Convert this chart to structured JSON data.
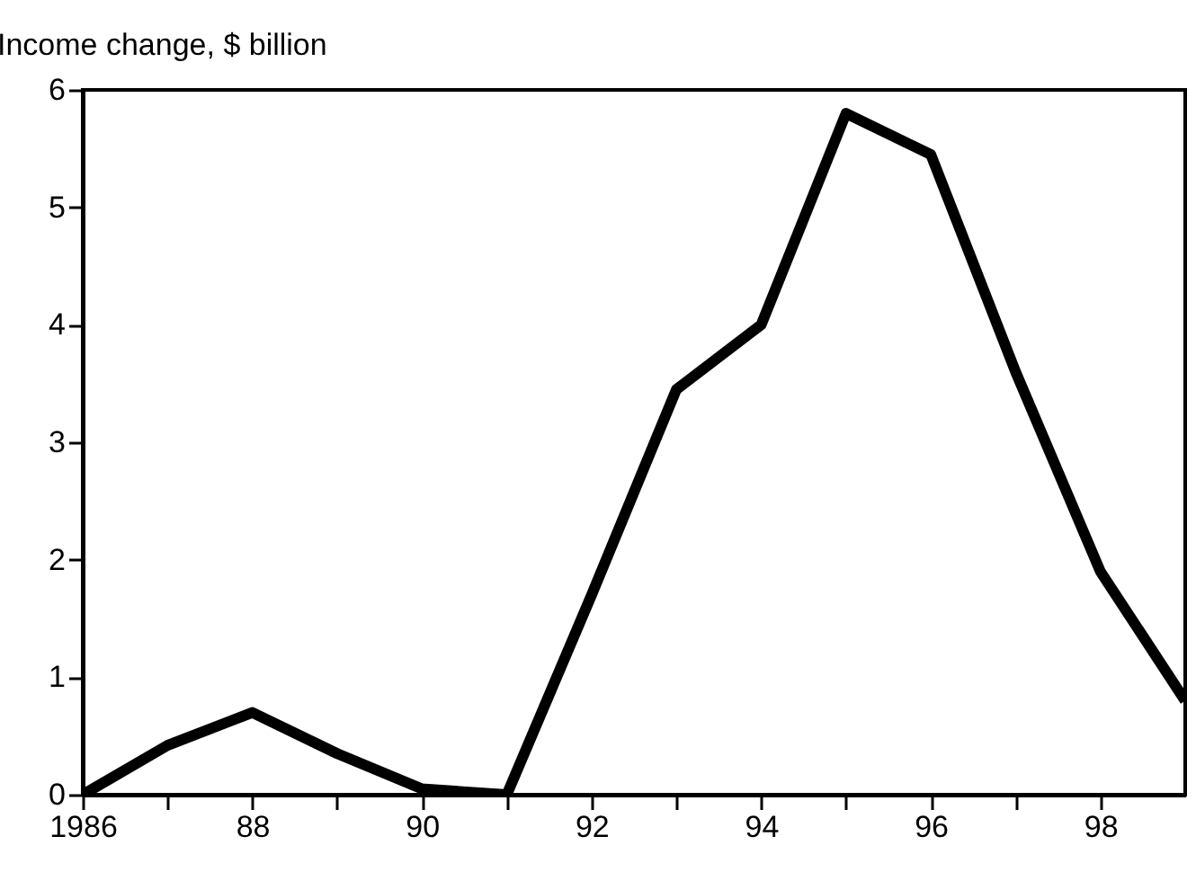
{
  "chart_data": {
    "type": "line",
    "ylabel": "Income change, $ billion",
    "x": [
      1986,
      1987,
      1988,
      1989,
      1990,
      1991,
      1992,
      1993,
      1994,
      1995,
      1996,
      1997,
      1998,
      1999
    ],
    "series": [
      {
        "color": "#000000",
        "values": [
          0,
          0.42,
          0.7,
          0.35,
          0.05,
          0,
          1.7,
          3.45,
          4.0,
          5.8,
          5.45,
          3.6,
          1.9,
          0.8
        ]
      }
    ],
    "xlim": [
      1986,
      1999
    ],
    "xticks": [
      1986,
      {
        "value": 1987,
        "label": null
      },
      {
        "value": 1988,
        "label": "88"
      },
      {
        "value": 1989,
        "label": null
      },
      {
        "value": 1990,
        "label": "90"
      },
      {
        "value": 1991,
        "label": null
      },
      {
        "value": 1992,
        "label": "92"
      },
      {
        "value": 1993,
        "label": null
      },
      {
        "value": 1994,
        "label": "94"
      },
      {
        "value": 1995,
        "label": null
      },
      {
        "value": 1996,
        "label": "96"
      },
      {
        "value": 1997,
        "label": null
      },
      {
        "value": 1998,
        "label": "98"
      }
    ],
    "ylim": [
      0,
      6
    ],
    "yticks": [
      0,
      1,
      2,
      3,
      4,
      5,
      6
    ],
    "grid": false,
    "marker": "none",
    "line_style": "solid"
  }
}
